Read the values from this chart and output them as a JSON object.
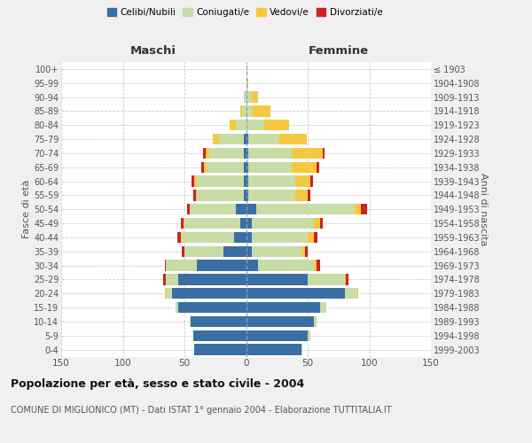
{
  "age_groups": [
    "0-4",
    "5-9",
    "10-14",
    "15-19",
    "20-24",
    "25-29",
    "30-34",
    "35-39",
    "40-44",
    "45-49",
    "50-54",
    "55-59",
    "60-64",
    "65-69",
    "70-74",
    "75-79",
    "80-84",
    "85-89",
    "90-94",
    "95-99",
    "100+"
  ],
  "birth_years": [
    "1999-2003",
    "1994-1998",
    "1989-1993",
    "1984-1988",
    "1979-1983",
    "1974-1978",
    "1969-1973",
    "1964-1968",
    "1959-1963",
    "1954-1958",
    "1949-1953",
    "1944-1948",
    "1939-1943",
    "1934-1938",
    "1929-1933",
    "1924-1928",
    "1919-1923",
    "1914-1918",
    "1909-1913",
    "1904-1908",
    "≤ 1903"
  ],
  "maschi_celibi": [
    42,
    43,
    45,
    55,
    60,
    55,
    40,
    18,
    10,
    5,
    8,
    2,
    2,
    2,
    2,
    2,
    0,
    0,
    0,
    0,
    0
  ],
  "maschi_coniugati": [
    0,
    0,
    1,
    2,
    5,
    10,
    25,
    32,
    42,
    45,
    38,
    38,
    38,
    30,
    28,
    20,
    8,
    3,
    2,
    0,
    0
  ],
  "maschi_vedovi": [
    0,
    0,
    0,
    0,
    1,
    0,
    0,
    0,
    1,
    1,
    0,
    1,
    2,
    2,
    3,
    5,
    5,
    2,
    0,
    0,
    0
  ],
  "maschi_divorziati": [
    0,
    0,
    0,
    0,
    0,
    2,
    1,
    2,
    3,
    2,
    2,
    2,
    2,
    2,
    2,
    0,
    0,
    0,
    0,
    0,
    0
  ],
  "femmine_nubili": [
    45,
    50,
    55,
    60,
    80,
    50,
    10,
    5,
    5,
    5,
    8,
    2,
    2,
    2,
    2,
    2,
    0,
    0,
    0,
    0,
    0
  ],
  "femmine_coniugate": [
    1,
    2,
    2,
    5,
    10,
    30,
    45,
    40,
    45,
    50,
    80,
    38,
    38,
    35,
    35,
    25,
    15,
    5,
    5,
    1,
    0
  ],
  "femmine_vedove": [
    0,
    0,
    0,
    0,
    1,
    1,
    2,
    3,
    5,
    5,
    5,
    10,
    12,
    20,
    25,
    22,
    20,
    15,
    5,
    1,
    0
  ],
  "femmine_divorziate": [
    0,
    0,
    0,
    0,
    0,
    2,
    3,
    2,
    3,
    2,
    5,
    2,
    2,
    2,
    2,
    0,
    0,
    0,
    0,
    0,
    0
  ],
  "colors": {
    "celibi": "#3a6ea5",
    "coniugati": "#c8dca5",
    "vedovi": "#f5c842",
    "divorziati": "#cc2222"
  },
  "title": "Popolazione per età, sesso e stato civile - 2004",
  "subtitle": "COMUNE DI MIGLIONICO (MT) - Dati ISTAT 1° gennaio 2004 - Elaborazione TUTTITALIA.IT",
  "xlabel_left": "Maschi",
  "xlabel_right": "Femmine",
  "ylabel_left": "Fasce di età",
  "ylabel_right": "Anni di nascita",
  "xlim": 150,
  "legend_labels": [
    "Celibi/Nubili",
    "Coniugati/e",
    "Vedovi/e",
    "Divorziati/e"
  ],
  "bg_color": "#f0f0f0",
  "plot_bg_color": "#ffffff"
}
